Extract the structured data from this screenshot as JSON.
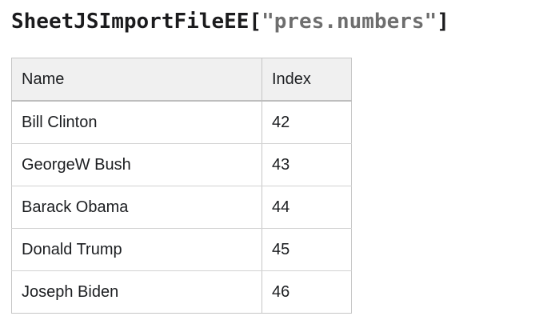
{
  "page": {
    "background": "#ffffff",
    "text_color": "#1c1e21"
  },
  "title": {
    "prefix": "SheetJSImportFileEE[",
    "string": "\"pres.numbers\"",
    "suffix": "]",
    "code_color": "#1b1b1d",
    "string_color": "#6e6e6e"
  },
  "table": {
    "columns": [
      "Name",
      "Index"
    ],
    "rows": [
      {
        "name": "Bill Clinton",
        "index": "42"
      },
      {
        "name": "GeorgeW Bush",
        "index": "43"
      },
      {
        "name": "Barack Obama",
        "index": "44"
      },
      {
        "name": "Donald Trump",
        "index": "45"
      },
      {
        "name": "Joseph Biden",
        "index": "46"
      }
    ],
    "header_bg": "#f0f0f0",
    "border_color": "#c6c6c6"
  }
}
